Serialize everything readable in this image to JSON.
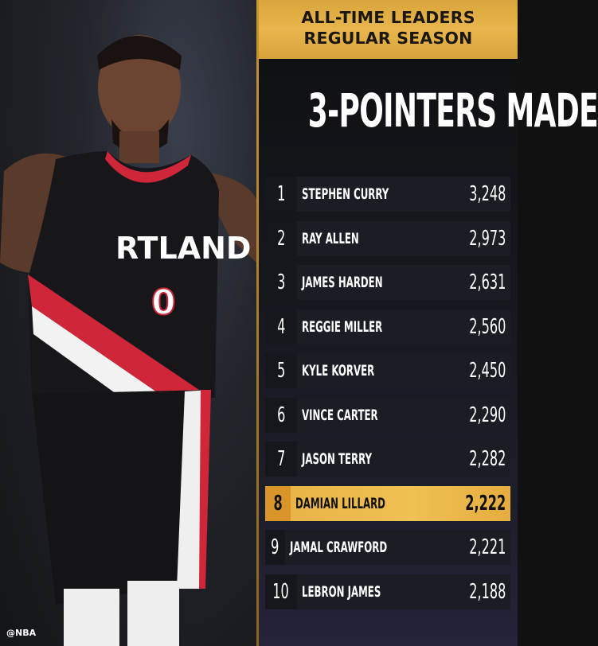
{
  "header": {
    "line1": "ALL-TIME LEADERS",
    "line2": "REGULAR SEASON"
  },
  "title": "3-POINTERS MADE",
  "watermark": "@NBA",
  "jersey": {
    "text": "RTLAND",
    "number": "0"
  },
  "colors": {
    "gold": "#E8B245",
    "highlight_rank": "#D9952A",
    "row_bg": "#1B1D24",
    "jersey_red": "#D0263A"
  },
  "highlighted_rank": 8,
  "leaders": [
    {
      "rank": "1",
      "name": "STEPHEN CURRY",
      "value": "3,248"
    },
    {
      "rank": "2",
      "name": "RAY ALLEN",
      "value": "2,973"
    },
    {
      "rank": "3",
      "name": "JAMES HARDEN",
      "value": "2,631"
    },
    {
      "rank": "4",
      "name": "REGGIE MILLER",
      "value": "2,560"
    },
    {
      "rank": "5",
      "name": "KYLE KORVER",
      "value": "2,450"
    },
    {
      "rank": "6",
      "name": "VINCE CARTER",
      "value": "2,290"
    },
    {
      "rank": "7",
      "name": "JASON TERRY",
      "value": "2,282"
    },
    {
      "rank": "8",
      "name": "DAMIAN LILLARD",
      "value": "2,222"
    },
    {
      "rank": "9",
      "name": "JAMAL CRAWFORD",
      "value": "2,221"
    },
    {
      "rank": "10",
      "name": "LEBRON JAMES",
      "value": "2,188"
    }
  ]
}
